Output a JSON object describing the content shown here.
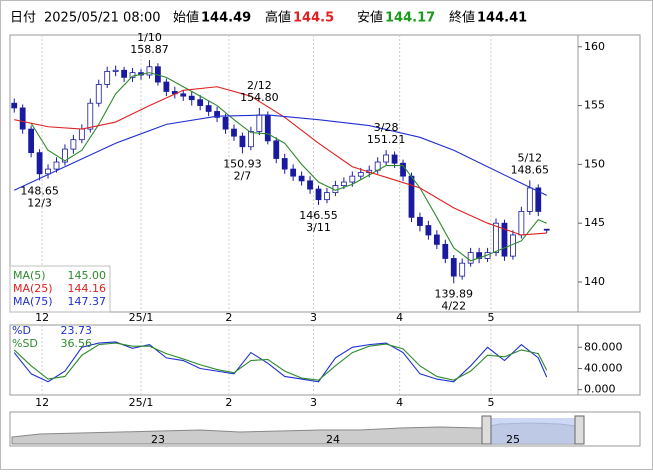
{
  "header": {
    "date_label": "日付",
    "datetime": "2025/05/21 08:00",
    "open_label": "始値",
    "high_label": "高値",
    "low_label": "安値",
    "close_label": "終値"
  },
  "navigator": {
    "labels": [
      "23",
      "24",
      "25"
    ]
  },
  "chart_data": [
    {
      "type": "candlestick",
      "xlim": [
        -0.5,
        66.7
      ],
      "ylim": [
        137.45,
        161.0
      ],
      "yticks": [
        140,
        145,
        150,
        155,
        160
      ],
      "xticks": [
        {
          "value": 3.3,
          "label": "12"
        },
        {
          "value": 15.0,
          "label": "25/1"
        },
        {
          "value": 25.4,
          "label": "2"
        },
        {
          "value": 35.4,
          "label": "3"
        },
        {
          "value": 45.6,
          "label": "4"
        },
        {
          "value": 56.4,
          "label": "5"
        }
      ],
      "up_color": "#ffffff",
      "down_color": "#1a1aa0",
      "grid": true,
      "ohlc": [
        [
          155.2,
          155.6,
          154.4,
          154.8
        ],
        [
          154.8,
          155.1,
          152.6,
          153.0
        ],
        [
          153.0,
          153.3,
          150.6,
          151.0
        ],
        [
          151.0,
          151.3,
          148.65,
          149.2
        ],
        [
          149.2,
          150.0,
          148.8,
          149.6
        ],
        [
          149.6,
          150.6,
          149.3,
          150.2
        ],
        [
          150.2,
          151.7,
          149.9,
          151.3
        ],
        [
          151.3,
          152.5,
          150.9,
          152.1
        ],
        [
          152.1,
          153.4,
          151.8,
          153.0
        ],
        [
          153.0,
          155.6,
          152.7,
          155.2
        ],
        [
          155.2,
          157.2,
          154.9,
          156.8
        ],
        [
          156.8,
          158.3,
          156.5,
          157.9
        ],
        [
          157.9,
          158.4,
          157.5,
          158.0
        ],
        [
          158.0,
          158.3,
          157.0,
          157.4
        ],
        [
          157.4,
          158.2,
          157.0,
          157.8
        ],
        [
          157.8,
          158.1,
          157.2,
          157.6
        ],
        [
          157.6,
          158.87,
          157.3,
          158.3
        ],
        [
          158.3,
          158.6,
          156.7,
          157.0
        ],
        [
          157.0,
          157.3,
          155.8,
          156.2
        ],
        [
          156.2,
          156.6,
          155.6,
          156.0
        ],
        [
          156.0,
          156.3,
          155.4,
          155.8
        ],
        [
          155.8,
          156.2,
          155.0,
          155.5
        ],
        [
          155.5,
          155.9,
          154.6,
          155.0
        ],
        [
          155.0,
          155.4,
          154.1,
          154.5
        ],
        [
          154.5,
          154.9,
          153.6,
          154.0
        ],
        [
          154.0,
          154.3,
          152.6,
          153.0
        ],
        [
          153.0,
          153.4,
          152.0,
          152.4
        ],
        [
          152.4,
          152.7,
          150.93,
          151.5
        ],
        [
          151.5,
          153.2,
          151.2,
          152.8
        ],
        [
          152.8,
          154.8,
          152.5,
          154.2
        ],
        [
          154.2,
          154.5,
          151.7,
          152.0
        ],
        [
          152.0,
          152.3,
          150.1,
          150.5
        ],
        [
          150.5,
          150.9,
          149.2,
          149.6
        ],
        [
          149.6,
          150.0,
          148.6,
          149.0
        ],
        [
          149.0,
          149.4,
          148.2,
          148.6
        ],
        [
          148.6,
          149.0,
          147.5,
          147.9
        ],
        [
          147.9,
          148.2,
          146.55,
          147.0
        ],
        [
          147.0,
          148.0,
          146.7,
          147.6
        ],
        [
          147.6,
          148.6,
          147.3,
          148.2
        ],
        [
          148.2,
          148.9,
          147.9,
          148.5
        ],
        [
          148.5,
          149.4,
          148.1,
          149.0
        ],
        [
          149.0,
          149.7,
          148.7,
          149.3
        ],
        [
          149.3,
          149.9,
          148.9,
          149.5
        ],
        [
          149.5,
          150.6,
          149.2,
          150.2
        ],
        [
          150.2,
          151.21,
          149.9,
          150.8
        ],
        [
          150.8,
          151.1,
          149.7,
          150.1
        ],
        [
          150.1,
          150.4,
          148.6,
          149.0
        ],
        [
          149.0,
          149.3,
          145.1,
          145.5
        ],
        [
          145.5,
          145.9,
          144.3,
          144.8
        ],
        [
          144.8,
          145.2,
          143.6,
          144.0
        ],
        [
          144.0,
          144.4,
          142.8,
          143.2
        ],
        [
          143.2,
          143.6,
          141.6,
          142.0
        ],
        [
          142.0,
          142.3,
          139.89,
          140.5
        ],
        [
          140.5,
          142.0,
          140.2,
          141.6
        ],
        [
          141.6,
          142.9,
          141.3,
          142.5
        ],
        [
          142.5,
          142.9,
          141.6,
          142.0
        ],
        [
          142.0,
          142.9,
          141.7,
          142.5
        ],
        [
          142.5,
          145.4,
          142.2,
          145.0
        ],
        [
          145.0,
          145.3,
          141.8,
          142.2
        ],
        [
          142.2,
          144.4,
          141.9,
          144.0
        ],
        [
          144.0,
          146.4,
          143.7,
          146.0
        ],
        [
          146.0,
          148.65,
          145.7,
          148.0
        ],
        [
          148.0,
          148.3,
          145.6,
          146.0
        ],
        [
          144.49,
          144.5,
          144.17,
          144.41
        ]
      ],
      "series": [
        {
          "name": "MA(5)",
          "color": "#2e8b2e",
          "value_label": "145.00",
          "x": [
            2,
            4,
            6,
            8,
            10,
            12,
            14,
            16,
            18,
            20,
            22,
            24,
            26,
            28,
            30,
            32,
            34,
            36,
            38,
            40,
            42,
            44,
            46,
            48,
            50,
            52,
            54,
            56,
            58,
            60,
            62,
            63
          ],
          "values": [
            153.5,
            151.2,
            150.3,
            151.2,
            153.4,
            156.0,
            157.5,
            157.8,
            157.4,
            156.6,
            155.8,
            155.0,
            153.8,
            152.7,
            152.6,
            151.8,
            150.0,
            148.5,
            147.8,
            148.3,
            149.1,
            149.9,
            149.9,
            148.0,
            145.5,
            142.9,
            141.8,
            142.3,
            142.9,
            143.5,
            145.3,
            145.0
          ]
        },
        {
          "name": "MA(25)",
          "color": "#e02020",
          "value_label": "144.16",
          "x": [
            0,
            4,
            8,
            12,
            16,
            20,
            24,
            28,
            32,
            36,
            40,
            44,
            48,
            52,
            56,
            60,
            63
          ],
          "values": [
            153.8,
            153.2,
            153.0,
            153.6,
            155.0,
            156.3,
            156.6,
            155.8,
            154.0,
            151.8,
            149.8,
            148.9,
            148.0,
            146.3,
            145.0,
            144.0,
            144.16
          ]
        },
        {
          "name": "MA(75)",
          "color": "#2030d0",
          "x": [
            0,
            6,
            12,
            18,
            24,
            30,
            36,
            42,
            48,
            52,
            56,
            60,
            63
          ],
          "values": [
            147.8,
            149.8,
            151.8,
            153.4,
            154.1,
            154.2,
            153.8,
            153.3,
            152.3,
            151.2,
            149.8,
            148.4,
            147.37
          ]
        }
      ],
      "annotations": [
        {
          "date": "12/3",
          "value": 148.65,
          "kind": "low"
        },
        {
          "date": "1/10",
          "value": 158.87,
          "kind": "high"
        },
        {
          "date": "2/7",
          "value": 150.93,
          "kind": "low"
        },
        {
          "date": "2/12",
          "value": 154.8,
          "value_label": "154.80",
          "kind": "high"
        },
        {
          "date": "3/11",
          "value": 146.55,
          "kind": "low"
        },
        {
          "date": "3/28",
          "value": 151.21,
          "kind": "high"
        },
        {
          "date": "4/22",
          "value": 139.89,
          "kind": "low"
        },
        {
          "date": "5/12",
          "value": 148.65,
          "kind": "high"
        }
      ]
    },
    {
      "type": "line",
      "xlim": [
        -0.5,
        66.7
      ],
      "ylim": [
        -10,
        122
      ],
      "yticks": [
        {
          "value": 0,
          "label": "0.000"
        },
        {
          "value": 40,
          "label": "40.000"
        },
        {
          "value": 80,
          "label": "80.000"
        }
      ],
      "xticks": [
        {
          "value": 3.3,
          "label": "12"
        },
        {
          "value": 15.0,
          "label": "25/1"
        },
        {
          "value": 25.4,
          "label": "2"
        },
        {
          "value": 35.4,
          "label": "3"
        },
        {
          "value": 45.6,
          "label": "4"
        },
        {
          "value": 56.4,
          "label": "5"
        }
      ],
      "x": [
        0,
        2,
        4,
        6,
        8,
        10,
        12,
        14,
        16,
        18,
        20,
        22,
        24,
        26,
        28,
        30,
        32,
        34,
        36,
        38,
        40,
        42,
        44,
        46,
        48,
        50,
        52,
        54,
        56,
        58,
        60,
        62,
        63
      ],
      "series": [
        {
          "name": "%D",
          "color": "#2030d0",
          "values": [
            70,
            30,
            15,
            35,
            80,
            88,
            90,
            78,
            85,
            60,
            55,
            40,
            35,
            30,
            70,
            50,
            25,
            20,
            15,
            60,
            80,
            85,
            88,
            70,
            30,
            20,
            15,
            45,
            80,
            55,
            85,
            60,
            23.73
          ]
        },
        {
          "name": "%SD",
          "color": "#2e8b2e",
          "values": [
            75,
            45,
            20,
            25,
            65,
            85,
            88,
            82,
            82,
            68,
            58,
            47,
            38,
            32,
            55,
            57,
            35,
            22,
            18,
            45,
            70,
            82,
            86,
            77,
            45,
            25,
            18,
            35,
            65,
            62,
            75,
            68,
            36.56
          ]
        }
      ]
    }
  ]
}
